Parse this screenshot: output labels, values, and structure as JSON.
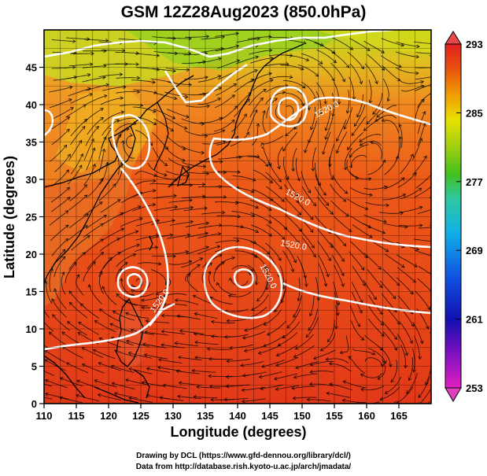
{
  "title": "GSM 12Z28Aug2023 (850.0hPa)",
  "credits": {
    "line1": "Drawing by DCL (https://www.gfd-dennou.org/library/dcl/)",
    "line2": "Data from http://database.rish.kyoto-u.ac.jp/arch/jmadata/"
  },
  "chart_data": {
    "type": "heatmap",
    "title": "GSM 12Z28Aug2023 (850.0hPa)",
    "xlabel": "Longitude (degrees)",
    "ylabel": "Latitude  (degrees)",
    "xlim": [
      110,
      170
    ],
    "ylim": [
      0,
      50
    ],
    "x_ticks": [
      110,
      115,
      120,
      125,
      130,
      135,
      140,
      145,
      150,
      155,
      160,
      165
    ],
    "y_ticks": [
      0,
      5,
      10,
      15,
      20,
      25,
      30,
      35,
      40,
      45
    ],
    "grid": true,
    "colorbar": {
      "min": 253,
      "max": 293,
      "ticks": [
        253,
        261,
        269,
        277,
        285,
        293
      ],
      "colors": [
        "#e020c0",
        "#1010b0",
        "#1050e0",
        "#10b0e8",
        "#30c8a0",
        "#40c020",
        "#a0d010",
        "#e8e000",
        "#f0a000",
        "#e85010",
        "#e02020"
      ]
    },
    "contour_labels": [
      "1520.0",
      "1520.0",
      "1520.0",
      "1520.0",
      "1520.0"
    ],
    "overlays": [
      "temperature shading",
      "geopotential height contours",
      "streamlines",
      "coastlines"
    ]
  }
}
